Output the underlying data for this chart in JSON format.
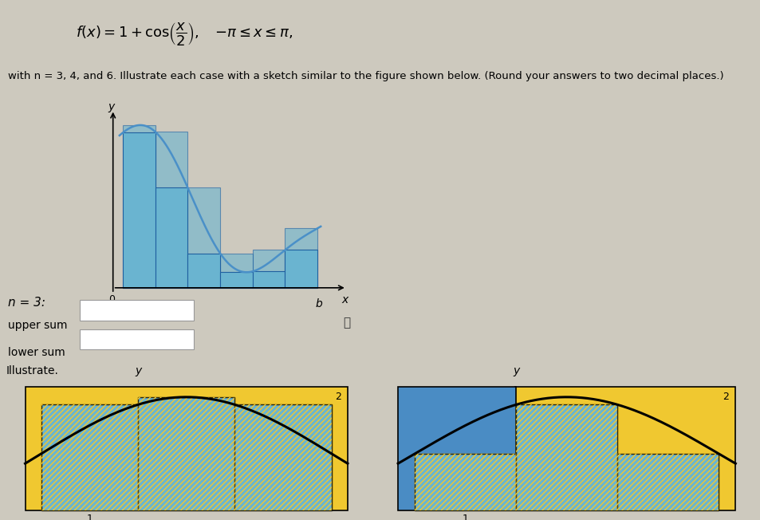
{
  "bg_color": "#cdc9be",
  "light_blue": "#6ab4d0",
  "yellow": "#f0c830",
  "blue_solid": "#4a8cc4",
  "bar_edge": "#2060a0",
  "curve_top": "#4a90c8",
  "pi": 3.14159265358979,
  "formula_fontsize": 13,
  "subtitle_fontsize": 9.5,
  "n_label": "n = 3:",
  "upper_sum_label": "upper sum",
  "lower_sum_label": "lower sum",
  "illustrate_label": "Illustrate.",
  "hatch_color": "#f0c830",
  "hatch_style": "/////"
}
